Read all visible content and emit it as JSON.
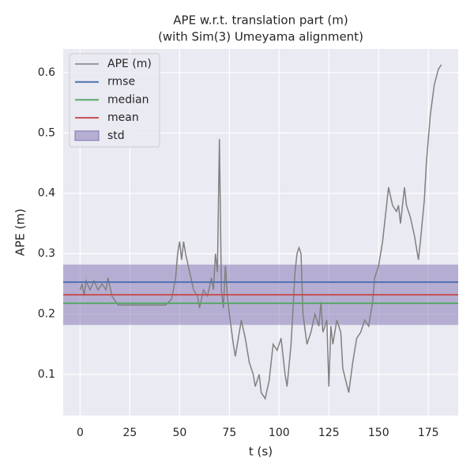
{
  "chart_data": {
    "type": "line",
    "title": "APE w.r.t. translation part (m)",
    "subtitle": "(with Sim(3) Umeyama alignment)",
    "x_label": "t (s)",
    "y_label": "APE (m)",
    "xlim": [
      -8.5,
      190
    ],
    "ylim": [
      0.032,
      0.639
    ],
    "xticks": [
      0,
      25,
      50,
      75,
      100,
      125,
      150,
      175
    ],
    "yticks": [
      0.1,
      0.2,
      0.3,
      0.4,
      0.5,
      0.6
    ],
    "grid": true,
    "legend": "upper left",
    "x": [
      0,
      1,
      2,
      3,
      5,
      7,
      9,
      11,
      13,
      14,
      16,
      18,
      19,
      43,
      46,
      48,
      49,
      50,
      51,
      52,
      53,
      55,
      57,
      59,
      60,
      62,
      64,
      66,
      67,
      68,
      69,
      70,
      71,
      72,
      73,
      74,
      75,
      77,
      78,
      80,
      81,
      83,
      85,
      87,
      88,
      90,
      91,
      93,
      95,
      97,
      99,
      101,
      103,
      104,
      106,
      107,
      108,
      109,
      110,
      111,
      112,
      114,
      116,
      118,
      120,
      121,
      122,
      124,
      125,
      126,
      127,
      129,
      131,
      132,
      135,
      137,
      139,
      141,
      143,
      145,
      147,
      148,
      150,
      152,
      154,
      155,
      157,
      159,
      160,
      161,
      162,
      163,
      164,
      166,
      168,
      170,
      171,
      173,
      174,
      176,
      178,
      180,
      181.5
    ],
    "series": [
      {
        "name": "APE (m)",
        "color": "#808080",
        "values": [
          0.24,
          0.25,
          0.23,
          0.255,
          0.24,
          0.255,
          0.24,
          0.25,
          0.24,
          0.26,
          0.23,
          0.22,
          0.215,
          0.215,
          0.225,
          0.26,
          0.3,
          0.32,
          0.29,
          0.32,
          0.3,
          0.27,
          0.24,
          0.23,
          0.21,
          0.24,
          0.23,
          0.26,
          0.24,
          0.3,
          0.27,
          0.49,
          0.24,
          0.21,
          0.28,
          0.23,
          0.2,
          0.15,
          0.13,
          0.17,
          0.19,
          0.16,
          0.12,
          0.1,
          0.08,
          0.1,
          0.07,
          0.06,
          0.09,
          0.15,
          0.14,
          0.16,
          0.1,
          0.08,
          0.15,
          0.21,
          0.27,
          0.3,
          0.31,
          0.3,
          0.2,
          0.15,
          0.17,
          0.2,
          0.18,
          0.22,
          0.17,
          0.19,
          0.08,
          0.18,
          0.15,
          0.19,
          0.17,
          0.11,
          0.07,
          0.12,
          0.16,
          0.17,
          0.19,
          0.18,
          0.22,
          0.26,
          0.28,
          0.32,
          0.38,
          0.41,
          0.38,
          0.37,
          0.38,
          0.35,
          0.38,
          0.41,
          0.38,
          0.36,
          0.33,
          0.29,
          0.32,
          0.39,
          0.45,
          0.53,
          0.58,
          0.605,
          0.613
        ]
      }
    ],
    "stats": [
      {
        "name": "rmse",
        "color": "#4c72b0",
        "value": 0.253
      },
      {
        "name": "median",
        "color": "#55a868",
        "value": 0.218
      },
      {
        "name": "mean",
        "color": "#c44e52",
        "value": 0.232
      }
    ],
    "std": {
      "name": "std",
      "color": "#8172b2",
      "value": 0.05
    }
  }
}
